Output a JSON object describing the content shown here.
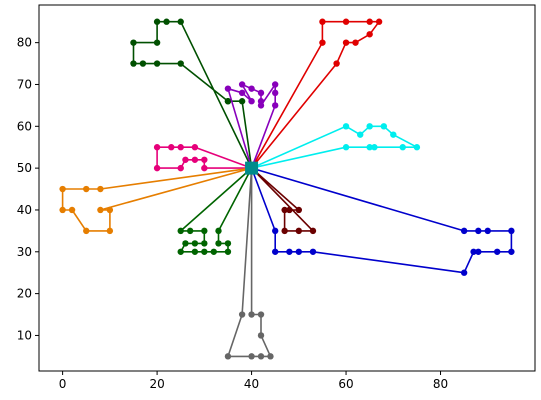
{
  "chart_data": {
    "type": "line",
    "title": "",
    "xlabel": "",
    "ylabel": "",
    "xlim": [
      -5,
      100
    ],
    "ylim": [
      1.5,
      89
    ],
    "xticks": [
      0,
      20,
      40,
      60,
      80
    ],
    "yticks": [
      10,
      20,
      30,
      40,
      50,
      60,
      70,
      80
    ],
    "grid": false,
    "legend": "none",
    "depot": {
      "x": 40,
      "y": 50,
      "color": "#008b8b"
    },
    "series": [
      {
        "color": "#005000",
        "points": [
          [
            40,
            50
          ],
          [
            38,
            66
          ],
          [
            35,
            66
          ],
          [
            35,
            66
          ],
          [
            25,
            75
          ],
          [
            20,
            75
          ],
          [
            17,
            75
          ],
          [
            15,
            75
          ],
          [
            15,
            80
          ],
          [
            20,
            80
          ],
          [
            20,
            85
          ],
          [
            22,
            85
          ],
          [
            25,
            85
          ],
          [
            40,
            50
          ]
        ]
      },
      {
        "color": "#e00000",
        "points": [
          [
            40,
            50
          ],
          [
            58,
            75
          ],
          [
            60,
            80
          ],
          [
            62,
            80
          ],
          [
            65,
            82
          ],
          [
            67,
            85
          ],
          [
            65,
            85
          ],
          [
            60,
            85
          ],
          [
            55,
            85
          ],
          [
            55,
            80
          ],
          [
            40,
            50
          ]
        ]
      },
      {
        "color": "#8800bb",
        "points": [
          [
            40,
            50
          ],
          [
            45,
            65
          ],
          [
            45,
            68
          ],
          [
            45,
            70
          ],
          [
            42,
            65
          ],
          [
            42,
            66
          ],
          [
            42,
            68
          ],
          [
            40,
            69
          ],
          [
            38,
            70
          ],
          [
            40,
            66
          ],
          [
            38,
            68
          ],
          [
            35,
            69
          ],
          [
            40,
            50
          ]
        ]
      },
      {
        "color": "#00eeee",
        "points": [
          [
            40,
            50
          ],
          [
            60,
            55
          ],
          [
            65,
            55
          ],
          [
            66,
            55
          ],
          [
            72,
            55
          ],
          [
            75,
            55
          ],
          [
            70,
            58
          ],
          [
            68,
            60
          ],
          [
            65,
            60
          ],
          [
            63,
            58
          ],
          [
            60,
            60
          ],
          [
            40,
            50
          ]
        ]
      },
      {
        "color": "#e6007a",
        "points": [
          [
            40,
            50
          ],
          [
            30,
            50
          ],
          [
            30,
            52
          ],
          [
            28,
            52
          ],
          [
            26,
            52
          ],
          [
            25,
            50
          ],
          [
            20,
            50
          ],
          [
            20,
            55
          ],
          [
            23,
            55
          ],
          [
            25,
            55
          ],
          [
            28,
            55
          ],
          [
            40,
            50
          ]
        ]
      },
      {
        "color": "#e67e00",
        "points": [
          [
            40,
            50
          ],
          [
            8,
            45
          ],
          [
            5,
            45
          ],
          [
            0,
            45
          ],
          [
            0,
            40
          ],
          [
            2,
            40
          ],
          [
            5,
            35
          ],
          [
            10,
            35
          ],
          [
            10,
            40
          ],
          [
            8,
            40
          ],
          [
            40,
            50
          ]
        ]
      },
      {
        "color": "#006400",
        "points": [
          [
            40,
            50
          ],
          [
            33,
            35
          ],
          [
            33,
            32
          ],
          [
            35,
            32
          ],
          [
            35,
            30
          ],
          [
            32,
            30
          ],
          [
            30,
            30
          ],
          [
            28,
            30
          ],
          [
            25,
            30
          ],
          [
            26,
            32
          ],
          [
            28,
            32
          ],
          [
            30,
            32
          ],
          [
            30,
            35
          ],
          [
            27,
            35
          ],
          [
            25,
            35
          ],
          [
            40,
            50
          ]
        ]
      },
      {
        "color": "#666666",
        "points": [
          [
            40,
            50
          ],
          [
            40,
            15
          ],
          [
            42,
            15
          ],
          [
            42,
            10
          ],
          [
            44,
            5
          ],
          [
            42,
            5
          ],
          [
            40,
            5
          ],
          [
            35,
            5
          ],
          [
            38,
            15
          ],
          [
            40,
            50
          ]
        ]
      },
      {
        "color": "#6b0000",
        "points": [
          [
            40,
            50
          ],
          [
            53,
            35
          ],
          [
            50,
            35
          ],
          [
            47,
            35
          ],
          [
            47,
            40
          ],
          [
            48,
            40
          ],
          [
            50,
            40
          ],
          [
            40,
            50
          ]
        ]
      },
      {
        "color": "#0000cc",
        "points": [
          [
            40,
            50
          ],
          [
            45,
            35
          ],
          [
            45,
            30
          ],
          [
            48,
            30
          ],
          [
            50,
            30
          ],
          [
            53,
            30
          ],
          [
            85,
            25
          ],
          [
            87,
            30
          ],
          [
            88,
            30
          ],
          [
            92,
            30
          ],
          [
            95,
            30
          ],
          [
            95,
            35
          ],
          [
            90,
            35
          ],
          [
            88,
            35
          ],
          [
            85,
            35
          ],
          [
            40,
            50
          ]
        ]
      }
    ]
  }
}
